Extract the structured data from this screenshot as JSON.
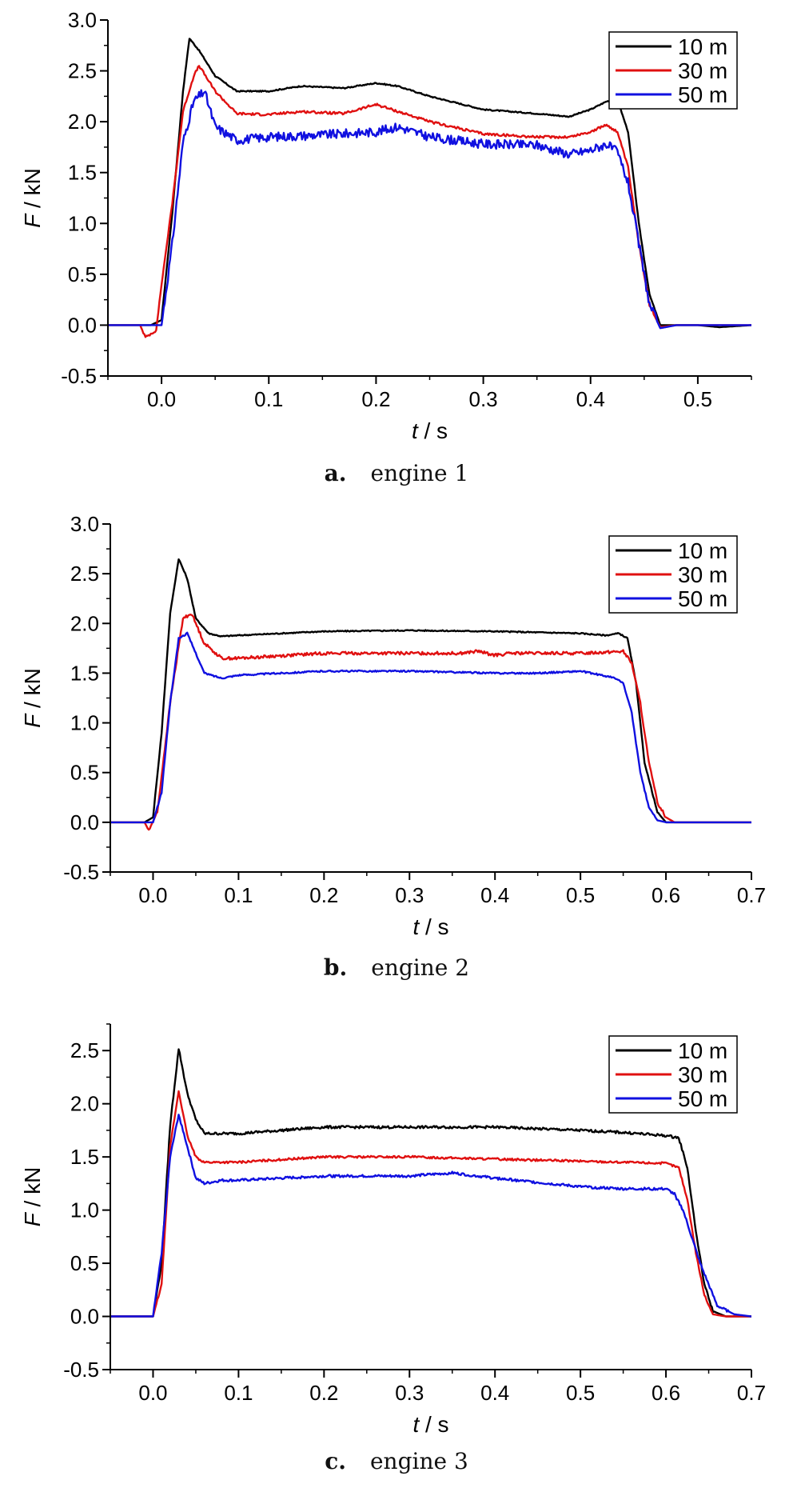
{
  "chart_data": [
    {
      "id": "a",
      "type": "line",
      "caption_letter": "a.",
      "caption_text": "engine 1",
      "xlabel_var": "t",
      "xlabel_unit": " / s",
      "ylabel_var": "F",
      "ylabel_unit": " / kN",
      "xlim": [
        -0.05,
        0.55
      ],
      "ylim": [
        -0.5,
        3.0
      ],
      "xticks": [
        "0.0",
        "0.1",
        "0.2",
        "0.3",
        "0.4",
        "0.5"
      ],
      "xtick_values": [
        0.0,
        0.1,
        0.2,
        0.3,
        0.4,
        0.5
      ],
      "yticks": [
        "-0.5",
        "0.0",
        "0.5",
        "1.0",
        "1.5",
        "2.0",
        "2.5",
        "3.0"
      ],
      "ytick_values": [
        -0.5,
        0.0,
        0.5,
        1.0,
        1.5,
        2.0,
        2.5,
        3.0
      ],
      "grid": false,
      "legend_position": "top-right",
      "series": [
        {
          "name": "10 m",
          "color": "#000000",
          "noise": 0.006,
          "x": [
            -0.05,
            -0.01,
            0.0,
            0.01,
            0.02,
            0.026,
            0.035,
            0.05,
            0.07,
            0.1,
            0.13,
            0.17,
            0.2,
            0.22,
            0.25,
            0.3,
            0.35,
            0.38,
            0.4,
            0.415,
            0.425,
            0.435,
            0.445,
            0.455,
            0.465,
            0.48,
            0.5,
            0.52,
            0.55
          ],
          "y": [
            0.0,
            0.0,
            0.05,
            1.1,
            2.3,
            2.82,
            2.7,
            2.45,
            2.3,
            2.3,
            2.35,
            2.33,
            2.38,
            2.35,
            2.25,
            2.12,
            2.08,
            2.05,
            2.12,
            2.2,
            2.22,
            1.9,
            1.0,
            0.3,
            0.0,
            0.0,
            0.0,
            -0.02,
            0.0
          ]
        },
        {
          "name": "30 m",
          "color": "#e01010",
          "noise": 0.012,
          "x": [
            -0.05,
            -0.02,
            -0.015,
            -0.005,
            0.0,
            0.01,
            0.02,
            0.03,
            0.035,
            0.05,
            0.07,
            0.1,
            0.13,
            0.17,
            0.2,
            0.25,
            0.3,
            0.35,
            0.38,
            0.4,
            0.415,
            0.425,
            0.435,
            0.445,
            0.455,
            0.465,
            0.48,
            0.5,
            0.55
          ],
          "y": [
            0.0,
            0.0,
            -0.12,
            -0.05,
            0.4,
            1.2,
            2.1,
            2.45,
            2.55,
            2.3,
            2.08,
            2.07,
            2.1,
            2.08,
            2.17,
            2.0,
            1.88,
            1.85,
            1.85,
            1.9,
            1.97,
            1.9,
            1.55,
            0.8,
            0.2,
            -0.02,
            0.0,
            0.0,
            0.0
          ]
        },
        {
          "name": "50 m",
          "color": "#1010e0",
          "noise": 0.045,
          "x": [
            -0.05,
            -0.01,
            0.0,
            0.01,
            0.02,
            0.03,
            0.04,
            0.05,
            0.07,
            0.1,
            0.15,
            0.2,
            0.22,
            0.25,
            0.3,
            0.35,
            0.38,
            0.4,
            0.415,
            0.425,
            0.435,
            0.445,
            0.455,
            0.465,
            0.48,
            0.5,
            0.55
          ],
          "y": [
            0.0,
            0.0,
            0.0,
            0.8,
            1.8,
            2.2,
            2.3,
            1.95,
            1.82,
            1.85,
            1.87,
            1.9,
            1.95,
            1.85,
            1.78,
            1.77,
            1.68,
            1.72,
            1.78,
            1.7,
            1.4,
            0.8,
            0.2,
            -0.03,
            0.0,
            0.0,
            0.0
          ]
        }
      ]
    },
    {
      "id": "b",
      "type": "line",
      "caption_letter": "b.",
      "caption_text": "engine 2",
      "xlabel_var": "t",
      "xlabel_unit": " / s",
      "ylabel_var": "F",
      "ylabel_unit": " / kN",
      "xlim": [
        -0.05,
        0.7
      ],
      "ylim": [
        -0.5,
        3.0
      ],
      "xticks": [
        "0.0",
        "0.1",
        "0.2",
        "0.3",
        "0.4",
        "0.5",
        "0.6",
        "0.7"
      ],
      "xtick_values": [
        0.0,
        0.1,
        0.2,
        0.3,
        0.4,
        0.5,
        0.6,
        0.7
      ],
      "yticks": [
        "-0.5",
        "0.0",
        "0.5",
        "1.0",
        "1.5",
        "2.0",
        "2.5",
        "3.0"
      ],
      "ytick_values": [
        -0.5,
        0.0,
        0.5,
        1.0,
        1.5,
        2.0,
        2.5,
        3.0
      ],
      "grid": false,
      "legend_position": "top-right",
      "series": [
        {
          "name": "10 m",
          "color": "#000000",
          "noise": 0.006,
          "x": [
            -0.05,
            -0.01,
            0.0,
            0.01,
            0.02,
            0.03,
            0.04,
            0.05,
            0.065,
            0.08,
            0.1,
            0.2,
            0.3,
            0.4,
            0.5,
            0.53,
            0.545,
            0.555,
            0.565,
            0.575,
            0.59,
            0.6,
            0.62,
            0.7
          ],
          "y": [
            0.0,
            0.0,
            0.05,
            0.9,
            2.1,
            2.65,
            2.45,
            2.05,
            1.9,
            1.87,
            1.88,
            1.92,
            1.93,
            1.92,
            1.9,
            1.88,
            1.9,
            1.85,
            1.4,
            0.6,
            0.1,
            0.0,
            0.0,
            0.0
          ]
        },
        {
          "name": "30 m",
          "color": "#e01010",
          "noise": 0.015,
          "x": [
            -0.05,
            -0.01,
            -0.005,
            0.005,
            0.02,
            0.035,
            0.045,
            0.06,
            0.08,
            0.1,
            0.2,
            0.3,
            0.36,
            0.38,
            0.4,
            0.42,
            0.5,
            0.55,
            0.56,
            0.57,
            0.58,
            0.59,
            0.6,
            0.61,
            0.62,
            0.7
          ],
          "y": [
            0.0,
            0.0,
            -0.08,
            0.1,
            1.2,
            2.05,
            2.1,
            1.8,
            1.65,
            1.65,
            1.7,
            1.7,
            1.7,
            1.72,
            1.68,
            1.7,
            1.7,
            1.72,
            1.6,
            1.2,
            0.6,
            0.2,
            0.05,
            0.0,
            0.0,
            0.0
          ]
        },
        {
          "name": "50 m",
          "color": "#1010e0",
          "noise": 0.008,
          "x": [
            -0.05,
            -0.01,
            0.0,
            0.01,
            0.02,
            0.03,
            0.04,
            0.05,
            0.06,
            0.08,
            0.1,
            0.2,
            0.3,
            0.4,
            0.45,
            0.5,
            0.53,
            0.54,
            0.55,
            0.56,
            0.57,
            0.58,
            0.59,
            0.6,
            0.7
          ],
          "y": [
            0.0,
            0.0,
            0.0,
            0.3,
            1.2,
            1.85,
            1.9,
            1.7,
            1.5,
            1.45,
            1.48,
            1.52,
            1.52,
            1.5,
            1.5,
            1.52,
            1.47,
            1.45,
            1.4,
            1.1,
            0.5,
            0.15,
            0.02,
            0.0,
            0.0
          ]
        }
      ]
    },
    {
      "id": "c",
      "type": "line",
      "caption_letter": "c.",
      "caption_text": "engine 3",
      "xlabel_var": "t",
      "xlabel_unit": " / s",
      "ylabel_var": "F",
      "ylabel_unit": " / kN",
      "xlim": [
        -0.05,
        0.7
      ],
      "ylim": [
        -0.5,
        2.75
      ],
      "xticks": [
        "0.0",
        "0.1",
        "0.2",
        "0.3",
        "0.4",
        "0.5",
        "0.6",
        "0.7"
      ],
      "xtick_values": [
        0.0,
        0.1,
        0.2,
        0.3,
        0.4,
        0.5,
        0.6,
        0.7
      ],
      "yticks": [
        "-0.5",
        "0.0",
        "0.5",
        "1.0",
        "1.5",
        "2.0",
        "2.5"
      ],
      "ytick_values": [
        -0.5,
        0.0,
        0.5,
        1.0,
        1.5,
        2.0,
        2.5
      ],
      "grid": false,
      "legend_position": "top-right",
      "series": [
        {
          "name": "10 m",
          "color": "#000000",
          "noise": 0.012,
          "x": [
            -0.05,
            -0.01,
            0.0,
            0.01,
            0.02,
            0.03,
            0.04,
            0.05,
            0.06,
            0.08,
            0.1,
            0.15,
            0.2,
            0.3,
            0.4,
            0.5,
            0.55,
            0.6,
            0.615,
            0.625,
            0.635,
            0.645,
            0.655,
            0.67
          ],
          "y": [
            0.0,
            0.0,
            0.0,
            0.5,
            1.8,
            2.52,
            2.1,
            1.85,
            1.72,
            1.72,
            1.72,
            1.75,
            1.78,
            1.78,
            1.78,
            1.75,
            1.73,
            1.7,
            1.68,
            1.4,
            0.8,
            0.3,
            0.05,
            0.0
          ]
        },
        {
          "name": "30 m",
          "color": "#e01010",
          "noise": 0.01,
          "x": [
            -0.05,
            -0.01,
            0.0,
            0.01,
            0.02,
            0.03,
            0.04,
            0.05,
            0.06,
            0.08,
            0.1,
            0.2,
            0.3,
            0.4,
            0.5,
            0.55,
            0.6,
            0.615,
            0.625,
            0.635,
            0.645,
            0.655,
            0.67
          ],
          "y": [
            0.0,
            0.0,
            0.0,
            0.3,
            1.6,
            2.12,
            1.7,
            1.5,
            1.45,
            1.45,
            1.45,
            1.5,
            1.5,
            1.48,
            1.46,
            1.45,
            1.44,
            1.4,
            1.1,
            0.6,
            0.2,
            0.02,
            0.0
          ]
        },
        {
          "name": "50 m",
          "color": "#1010e0",
          "noise": 0.012,
          "x": [
            -0.05,
            -0.01,
            0.0,
            0.01,
            0.02,
            0.03,
            0.04,
            0.05,
            0.06,
            0.08,
            0.1,
            0.2,
            0.3,
            0.35,
            0.4,
            0.5,
            0.55,
            0.6,
            0.61,
            0.62,
            0.63,
            0.64,
            0.65,
            0.66,
            0.68,
            0.7
          ],
          "y": [
            0.0,
            0.0,
            0.0,
            0.6,
            1.5,
            1.9,
            1.6,
            1.3,
            1.25,
            1.28,
            1.28,
            1.32,
            1.32,
            1.35,
            1.3,
            1.22,
            1.2,
            1.2,
            1.15,
            1.0,
            0.75,
            0.5,
            0.3,
            0.1,
            0.02,
            0.0
          ]
        }
      ]
    }
  ]
}
